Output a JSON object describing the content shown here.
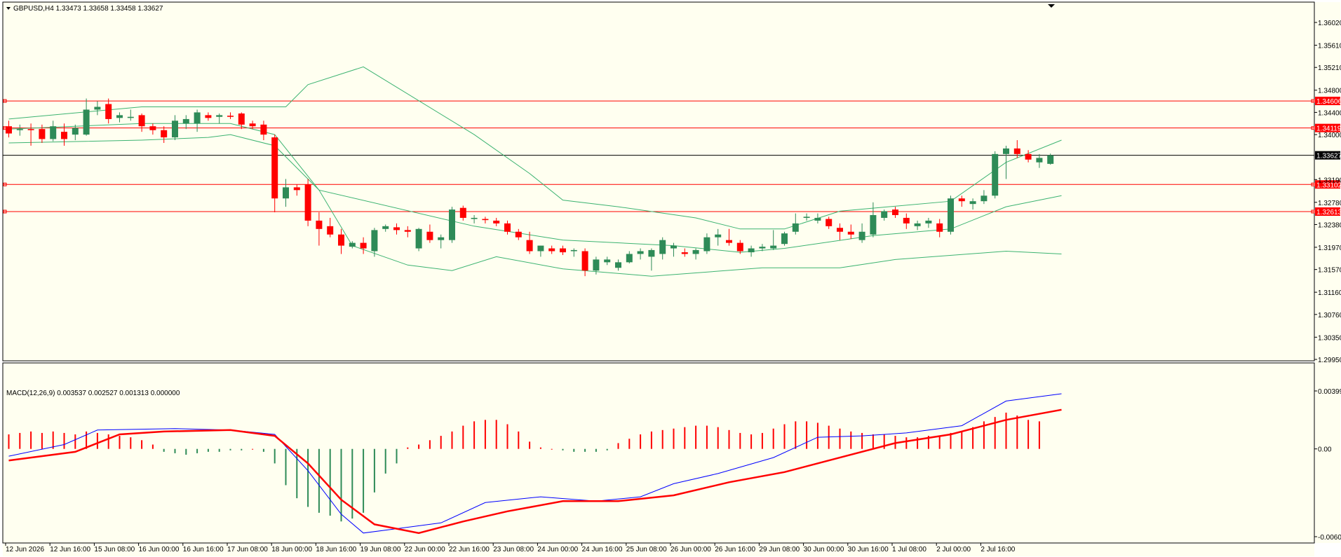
{
  "window": {
    "title": "GBPUSD,H4  1.33473 1.33658 1.33458 1.33627",
    "macd_title": "MACD(12,26,9) 0.003537 0.002527 0.001313 0.000000"
  },
  "colors": {
    "background": "#fffff0",
    "bull": "#2e8b57",
    "bear": "#ff0000",
    "bands": "#3cb371",
    "macd_line": "#0000ff",
    "signal_line": "#ff0000",
    "level": "#ff0000",
    "current_price_line": "#000000"
  },
  "chart_data": [
    {
      "type": "candlestick",
      "symbol": "GBPUSD",
      "timeframe": "H4",
      "header_values": {
        "open": 1.33473,
        "high": 1.33658,
        "low": 1.33458,
        "close": 1.33627
      },
      "ylim": [
        1.2995,
        1.3621
      ],
      "y_ticks": [
        "1.36020",
        "1.35610",
        "1.35210",
        "1.34800",
        "1.34400",
        "1.34000",
        "1.33190",
        "1.32780",
        "1.32380",
        "1.31970",
        "1.31570",
        "1.31160",
        "1.30760",
        "1.30350",
        "1.29950"
      ],
      "x_labels": [
        {
          "bar": 0,
          "label": "12 Jun 2026"
        },
        {
          "bar": 4,
          "label": "12 Jun 16:00"
        },
        {
          "bar": 8,
          "label": "15 Jun 08:00"
        },
        {
          "bar": 12,
          "label": "16 Jun 00:00"
        },
        {
          "bar": 16,
          "label": "16 Jun 16:00"
        },
        {
          "bar": 20,
          "label": "17 Jun 08:00"
        },
        {
          "bar": 24,
          "label": "18 Jun 00:00"
        },
        {
          "bar": 28,
          "label": "18 Jun 16:00"
        },
        {
          "bar": 32,
          "label": "19 Jun 08:00"
        },
        {
          "bar": 36,
          "label": "22 Jun 00:00"
        },
        {
          "bar": 40,
          "label": "22 Jun 16:00"
        },
        {
          "bar": 44,
          "label": "23 Jun 08:00"
        },
        {
          "bar": 48,
          "label": "24 Jun 00:00"
        },
        {
          "bar": 52,
          "label": "24 Jun 16:00"
        },
        {
          "bar": 56,
          "label": "25 Jun 08:00"
        },
        {
          "bar": 60,
          "label": "26 Jun 00:00"
        },
        {
          "bar": 64,
          "label": "26 Jun 16:00"
        },
        {
          "bar": 68,
          "label": "29 Jun 08:00"
        },
        {
          "bar": 72,
          "label": "30 Jun 00:00"
        },
        {
          "bar": 76,
          "label": "30 Jun 16:00"
        },
        {
          "bar": 80,
          "label": "1 Jul 08:00"
        },
        {
          "bar": 84,
          "label": "2 Jul 00:00"
        },
        {
          "bar": 88,
          "label": "2 Jul 16:00"
        }
      ],
      "levels": [
        {
          "value": 1.34606,
          "label": "1.34606"
        },
        {
          "value": 1.34119,
          "label": "1.34119"
        },
        {
          "value": 1.33102,
          "label": "1.33102"
        },
        {
          "value": 1.32613,
          "label": "1.32613"
        }
      ],
      "current_price": {
        "value": 1.33627,
        "label": "1.33627"
      },
      "ohlc": [
        [
          1.3415,
          1.3425,
          1.3395,
          1.3402
        ],
        [
          1.3408,
          1.3418,
          1.3398,
          1.341
        ],
        [
          1.341,
          1.342,
          1.338,
          1.3408
        ],
        [
          1.341,
          1.3418,
          1.3385,
          1.3392
        ],
        [
          1.3392,
          1.3425,
          1.3388,
          1.3415
        ],
        [
          1.3405,
          1.342,
          1.338,
          1.3392
        ],
        [
          1.34,
          1.3418,
          1.339,
          1.3412
        ],
        [
          1.34,
          1.3465,
          1.3398,
          1.3445
        ],
        [
          1.3445,
          1.346,
          1.3435,
          1.345
        ],
        [
          1.3455,
          1.3465,
          1.342,
          1.3428
        ],
        [
          1.343,
          1.344,
          1.3422,
          1.3435
        ],
        [
          1.343,
          1.3445,
          1.3425,
          1.3432
        ],
        [
          1.3435,
          1.3438,
          1.3405,
          1.3415
        ],
        [
          1.3415,
          1.342,
          1.34,
          1.3408
        ],
        [
          1.3408,
          1.3415,
          1.3385,
          1.3395
        ],
        [
          1.3395,
          1.3435,
          1.339,
          1.3425
        ],
        [
          1.342,
          1.3435,
          1.341,
          1.3428
        ],
        [
          1.342,
          1.3445,
          1.3405,
          1.344
        ],
        [
          1.3435,
          1.344,
          1.3425,
          1.343
        ],
        [
          1.3432,
          1.3438,
          1.342,
          1.3435
        ],
        [
          1.3434,
          1.344,
          1.3428,
          1.3432
        ],
        [
          1.3438,
          1.344,
          1.341,
          1.3418
        ],
        [
          1.342,
          1.3425,
          1.341,
          1.3415
        ],
        [
          1.3418,
          1.3425,
          1.339,
          1.34
        ],
        [
          1.3395,
          1.34,
          1.326,
          1.3285
        ],
        [
          1.3285,
          1.332,
          1.327,
          1.3305
        ],
        [
          1.3305,
          1.331,
          1.329,
          1.33
        ],
        [
          1.331,
          1.332,
          1.3235,
          1.3245
        ],
        [
          1.3245,
          1.326,
          1.32,
          1.323
        ],
        [
          1.3235,
          1.325,
          1.3215,
          1.322
        ],
        [
          1.322,
          1.323,
          1.3185,
          1.32
        ],
        [
          1.3198,
          1.3208,
          1.3195,
          1.3205
        ],
        [
          1.3205,
          1.3215,
          1.3185,
          1.3195
        ],
        [
          1.319,
          1.3232,
          1.318,
          1.3228
        ],
        [
          1.323,
          1.3238,
          1.3225,
          1.3235
        ],
        [
          1.3233,
          1.324,
          1.322,
          1.3228
        ],
        [
          1.3228,
          1.3235,
          1.3215,
          1.3225
        ],
        [
          1.3195,
          1.3232,
          1.319,
          1.323
        ],
        [
          1.3225,
          1.3238,
          1.3205,
          1.321
        ],
        [
          1.321,
          1.322,
          1.3195,
          1.3215
        ],
        [
          1.321,
          1.327,
          1.3205,
          1.3265
        ],
        [
          1.3268,
          1.3272,
          1.3245,
          1.325
        ],
        [
          1.3248,
          1.3255,
          1.324,
          1.325
        ],
        [
          1.3248,
          1.3252,
          1.324,
          1.3246
        ],
        [
          1.3245,
          1.325,
          1.3235,
          1.324
        ],
        [
          1.324,
          1.3245,
          1.322,
          1.3225
        ],
        [
          1.3225,
          1.323,
          1.321,
          1.3215
        ],
        [
          1.321,
          1.3225,
          1.3185,
          1.319
        ],
        [
          1.319,
          1.32,
          1.318,
          1.32
        ],
        [
          1.3195,
          1.32,
          1.3185,
          1.319
        ],
        [
          1.3195,
          1.32,
          1.3183,
          1.3188
        ],
        [
          1.319,
          1.3195,
          1.318,
          1.3192
        ],
        [
          1.319,
          1.3195,
          1.3145,
          1.3155
        ],
        [
          1.3155,
          1.318,
          1.3148,
          1.3175
        ],
        [
          1.317,
          1.318,
          1.3165,
          1.3175
        ],
        [
          1.316,
          1.3175,
          1.3155,
          1.317
        ],
        [
          1.317,
          1.319,
          1.3168,
          1.3185
        ],
        [
          1.3185,
          1.3195,
          1.3175,
          1.319
        ],
        [
          1.318,
          1.3195,
          1.3155,
          1.3192
        ],
        [
          1.3185,
          1.3215,
          1.3175,
          1.321
        ],
        [
          1.3195,
          1.3205,
          1.318,
          1.32
        ],
        [
          1.3188,
          1.3195,
          1.318,
          1.3185
        ],
        [
          1.3185,
          1.3195,
          1.3175,
          1.3192
        ],
        [
          1.319,
          1.3222,
          1.3185,
          1.3215
        ],
        [
          1.3215,
          1.323,
          1.32,
          1.322
        ],
        [
          1.321,
          1.323,
          1.32,
          1.3205
        ],
        [
          1.3205,
          1.321,
          1.3185,
          1.319
        ],
        [
          1.3188,
          1.32,
          1.318,
          1.3195
        ],
        [
          1.3195,
          1.3203,
          1.319,
          1.3198
        ],
        [
          1.3195,
          1.3228,
          1.3192,
          1.32
        ],
        [
          1.3203,
          1.3225,
          1.32,
          1.3222
        ],
        [
          1.3225,
          1.3258,
          1.322,
          1.324
        ],
        [
          1.325,
          1.3258,
          1.3245,
          1.3252
        ],
        [
          1.3245,
          1.3258,
          1.324,
          1.325
        ],
        [
          1.3248,
          1.3252,
          1.323,
          1.3235
        ],
        [
          1.3232,
          1.324,
          1.321,
          1.3225
        ],
        [
          1.3225,
          1.3238,
          1.3212,
          1.322
        ],
        [
          1.321,
          1.324,
          1.3205,
          1.3225
        ],
        [
          1.322,
          1.3278,
          1.3215,
          1.3255
        ],
        [
          1.325,
          1.3265,
          1.3245,
          1.3262
        ],
        [
          1.3265,
          1.327,
          1.325,
          1.3255
        ],
        [
          1.325,
          1.3258,
          1.323,
          1.324
        ],
        [
          1.3235,
          1.3245,
          1.3228,
          1.324
        ],
        [
          1.324,
          1.325,
          1.3232,
          1.3245
        ],
        [
          1.324,
          1.3248,
          1.3215,
          1.3225
        ],
        [
          1.3225,
          1.329,
          1.322,
          1.3285
        ],
        [
          1.3285,
          1.329,
          1.327,
          1.328
        ],
        [
          1.3275,
          1.3285,
          1.3265,
          1.328
        ],
        [
          1.328,
          1.33,
          1.3275,
          1.329
        ],
        [
          1.329,
          1.337,
          1.3285,
          1.3365
        ],
        [
          1.3365,
          1.338,
          1.332,
          1.3375
        ],
        [
          1.3375,
          1.339,
          1.3358,
          1.3365
        ],
        [
          1.3365,
          1.3372,
          1.335,
          1.3355
        ],
        [
          1.335,
          1.3365,
          1.334,
          1.3358
        ],
        [
          1.33473,
          1.33658,
          1.33458,
          1.33627
        ]
      ],
      "bands": {
        "upper": [
          [
            0,
            1.3428
          ],
          [
            12,
            1.345
          ],
          [
            25,
            1.345
          ],
          [
            27,
            1.349
          ],
          [
            32,
            1.3522
          ],
          [
            42,
            1.34
          ],
          [
            47,
            1.333
          ],
          [
            50,
            1.3282
          ],
          [
            55,
            1.327
          ],
          [
            62,
            1.325
          ],
          [
            66,
            1.323
          ],
          [
            70,
            1.323
          ],
          [
            75,
            1.3262
          ],
          [
            85,
            1.328
          ],
          [
            90,
            1.335
          ],
          [
            95,
            1.339
          ]
        ],
        "middle": [
          [
            0,
            1.341
          ],
          [
            12,
            1.342
          ],
          [
            20,
            1.342
          ],
          [
            24,
            1.34
          ],
          [
            28,
            1.33
          ],
          [
            42,
            1.3235
          ],
          [
            50,
            1.321
          ],
          [
            60,
            1.32
          ],
          [
            66,
            1.3188
          ],
          [
            70,
            1.3195
          ],
          [
            78,
            1.3218
          ],
          [
            85,
            1.323
          ],
          [
            90,
            1.327
          ],
          [
            95,
            1.329
          ]
        ],
        "lower": [
          [
            0,
            1.3385
          ],
          [
            12,
            1.339
          ],
          [
            18,
            1.3395
          ],
          [
            20,
            1.34
          ],
          [
            24,
            1.338
          ],
          [
            28,
            1.33
          ],
          [
            31,
            1.32
          ],
          [
            36,
            1.3165
          ],
          [
            40,
            1.3155
          ],
          [
            44,
            1.318
          ],
          [
            50,
            1.3158
          ],
          [
            58,
            1.3145
          ],
          [
            68,
            1.316
          ],
          [
            75,
            1.316
          ],
          [
            80,
            1.3175
          ],
          [
            90,
            1.319
          ],
          [
            95,
            1.3185
          ]
        ]
      }
    },
    {
      "type": "macd",
      "title": "MACD(12,26,9)",
      "values": {
        "macd": 0.003537,
        "signal": 0.002527,
        "histogram": 0.001313,
        "level": 0.0
      },
      "ylim": [
        -0.00605,
        0.003994
      ],
      "y_ticks": [
        "0.003994",
        "0.00",
        "-0.00605"
      ],
      "histogram": [
        0.001,
        0.0011,
        0.0012,
        0.0011,
        0.0012,
        0.0011,
        0.001,
        0.0012,
        0.0011,
        0.001,
        0.0009,
        0.0008,
        0.0006,
        0.0003,
        -0.0002,
        -0.0003,
        -0.0004,
        -0.0003,
        -0.0002,
        -0.0002,
        -0.0001,
        -0.0001,
        0.0,
        -0.0002,
        -0.001,
        -0.0025,
        -0.0034,
        -0.004,
        -0.0044,
        -0.0046,
        -0.005,
        -0.0048,
        -0.0044,
        -0.003,
        -0.0017,
        -0.001,
        0.0001,
        0.0003,
        0.0006,
        0.0009,
        0.0012,
        0.0016,
        0.0019,
        0.002,
        0.002,
        0.0017,
        0.0012,
        0.0005,
        0.0001,
        0.0,
        -0.0001,
        -0.0002,
        -0.0002,
        -0.0002,
        -0.0001,
        0.0004,
        0.0007,
        0.001,
        0.0012,
        0.0013,
        0.0014,
        0.0015,
        0.0016,
        0.0016,
        0.0015,
        0.0013,
        0.0011,
        0.001,
        0.0011,
        0.0014,
        0.0017,
        0.0019,
        0.0019,
        0.0018,
        0.0016,
        0.0014,
        0.0012,
        0.0011,
        0.001,
        0.001,
        0.0009,
        0.0008,
        0.0008,
        0.0009,
        0.0009,
        0.0011,
        0.0012,
        0.0015,
        0.0019,
        0.0022,
        0.0025,
        0.0023,
        0.002,
        0.0019
      ],
      "macd_line": [
        [
          0,
          -0.0005
        ],
        [
          5,
          0.0003
        ],
        [
          8,
          0.0013
        ],
        [
          15,
          0.0014
        ],
        [
          20,
          0.0013
        ],
        [
          24,
          0.001
        ],
        [
          27,
          -0.0015
        ],
        [
          30,
          -0.0045
        ],
        [
          32,
          -0.0058
        ],
        [
          35,
          -0.0055
        ],
        [
          39,
          -0.0051
        ],
        [
          43,
          -0.0037
        ],
        [
          48,
          -0.0033
        ],
        [
          53,
          -0.0036
        ],
        [
          57,
          -0.0033
        ],
        [
          60,
          -0.0024
        ],
        [
          64,
          -0.0017
        ],
        [
          69,
          -0.0006
        ],
        [
          73,
          0.0008
        ],
        [
          77,
          0.0009
        ],
        [
          81,
          0.0011
        ],
        [
          86,
          0.0016
        ],
        [
          90,
          0.0033
        ],
        [
          95,
          0.0038
        ]
      ],
      "signal_line": [
        [
          0,
          -0.0008
        ],
        [
          6,
          -0.0002
        ],
        [
          10,
          0.001
        ],
        [
          14,
          0.0012
        ],
        [
          20,
          0.0013
        ],
        [
          24,
          0.0009
        ],
        [
          27,
          -0.001
        ],
        [
          30,
          -0.0035
        ],
        [
          33,
          -0.0052
        ],
        [
          37,
          -0.0058
        ],
        [
          41,
          -0.005
        ],
        [
          45,
          -0.0043
        ],
        [
          50,
          -0.0036
        ],
        [
          55,
          -0.0036
        ],
        [
          60,
          -0.0032
        ],
        [
          65,
          -0.0023
        ],
        [
          70,
          -0.0016
        ],
        [
          75,
          -0.0006
        ],
        [
          80,
          0.0004
        ],
        [
          85,
          0.001
        ],
        [
          90,
          0.002
        ],
        [
          95,
          0.0027
        ]
      ]
    }
  ]
}
